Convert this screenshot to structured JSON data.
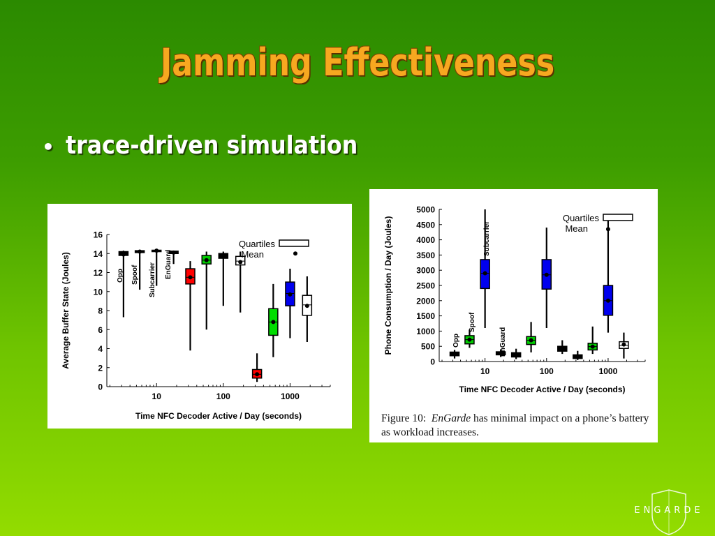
{
  "slide": {
    "title": "Jamming Effectiveness",
    "bullet": "trace-driven simulation",
    "caption_fig": "Figure 10:",
    "caption_name": "EnGarde",
    "caption_rest": "has minimal impact on a phone’s battery as workload increases.",
    "logo_text": "ENGARDE"
  },
  "chart_data": [
    {
      "type": "box",
      "title": "",
      "xlabel": "Time NFC Decoder Active / Day (seconds)",
      "ylabel": "Average Buffer State (Joules)",
      "x_scale": "log",
      "xlim": [
        1.8,
        4000
      ],
      "ylim": [
        0,
        16
      ],
      "yticks": [
        "0",
        "2",
        "4",
        "6",
        "8",
        "10",
        "12",
        "14",
        "16"
      ],
      "yticks_values": [
        0,
        2,
        4,
        6,
        8,
        10,
        12,
        14,
        16
      ],
      "xticks": [
        "10",
        "100",
        "1000"
      ],
      "xticks_values": [
        10,
        100,
        1000
      ],
      "legend": {
        "position": "top-right",
        "entries": [
          "Quartiles",
          "Mean"
        ]
      },
      "group_labels": [
        "Opp",
        "Spoof",
        "Subcarrier",
        "EnGuard"
      ],
      "boxes": [
        {
          "x": 3.2,
          "min": 7.3,
          "q1": 13.8,
          "med": 14.0,
          "q3": 14.2,
          "max": 14.3,
          "mean": 13.9,
          "color": "#000000"
        },
        {
          "x": 5.6,
          "min": 10.2,
          "q1": 14.1,
          "med": 14.2,
          "q3": 14.3,
          "max": 14.3,
          "mean": 14.2,
          "color": "#000000"
        },
        {
          "x": 10,
          "min": 10.6,
          "q1": 14.2,
          "med": 14.3,
          "q3": 14.35,
          "max": 14.4,
          "mean": 14.3,
          "color": "#000000"
        },
        {
          "x": 18,
          "min": 12.9,
          "q1": 14.0,
          "med": 14.1,
          "q3": 14.25,
          "max": 14.3,
          "mean": 14.1,
          "color": "#000000"
        },
        {
          "x": 32,
          "min": 3.8,
          "q1": 10.8,
          "med": 11.5,
          "q3": 12.4,
          "max": 13.2,
          "mean": 11.5,
          "color": "#ff0000"
        },
        {
          "x": 56,
          "min": 6.0,
          "q1": 12.9,
          "med": 13.3,
          "q3": 13.8,
          "max": 14.2,
          "mean": 13.3,
          "color": "#00cc00"
        },
        {
          "x": 100,
          "min": 8.5,
          "q1": 13.5,
          "med": 13.8,
          "q3": 14.0,
          "max": 14.2,
          "mean": 13.8,
          "color": "#000000"
        },
        {
          "x": 180,
          "min": 7.8,
          "q1": 12.8,
          "med": 13.2,
          "q3": 13.7,
          "max": 14.2,
          "mean": 13.1,
          "color": "#ffffff"
        },
        {
          "x": 320,
          "min": 0.5,
          "q1": 0.9,
          "med": 1.3,
          "q3": 1.8,
          "max": 3.5,
          "mean": 1.3,
          "color": "#ff0000"
        },
        {
          "x": 560,
          "min": 3.1,
          "q1": 5.4,
          "med": 6.8,
          "q3": 8.2,
          "max": 10.8,
          "mean": 6.8,
          "color": "#00dd00"
        },
        {
          "x": 1000,
          "min": 5.1,
          "q1": 8.5,
          "med": 9.8,
          "q3": 11.0,
          "max": 12.4,
          "mean": 9.7,
          "color": "#0000ee"
        },
        {
          "x": 1800,
          "min": 4.7,
          "q1": 7.5,
          "med": 8.6,
          "q3": 9.6,
          "max": 11.6,
          "mean": 8.5,
          "color": "#ffffff"
        }
      ],
      "outliers": [
        {
          "x": 1200,
          "y": 14.0
        }
      ]
    },
    {
      "type": "box",
      "title": "",
      "xlabel": "Time NFC Decoder Active / Day (seconds)",
      "ylabel": "Phone Consumption / Day (Joules)",
      "x_scale": "log",
      "xlim": [
        1.8,
        4000
      ],
      "ylim": [
        0,
        5000
      ],
      "yticks": [
        "0",
        "500",
        "1000",
        "1500",
        "2000",
        "2500",
        "3000",
        "3500",
        "4000",
        "4500",
        "5000"
      ],
      "yticks_values": [
        0,
        500,
        1000,
        1500,
        2000,
        2500,
        3000,
        3500,
        4000,
        4500,
        5000
      ],
      "xticks": [
        "10",
        "100",
        "1000"
      ],
      "xticks_values": [
        10,
        100,
        1000
      ],
      "legend": {
        "position": "top-right",
        "entries": [
          "Quartiles",
          "Mean"
        ]
      },
      "group_labels": [
        "Opp",
        "Spoof",
        "Subcarrier",
        "EnGuard"
      ],
      "boxes": [
        {
          "x": 3.2,
          "min": 100,
          "q1": 190,
          "med": 250,
          "q3": 310,
          "max": 380,
          "mean": 250,
          "color": "#000000"
        },
        {
          "x": 5.6,
          "min": 450,
          "q1": 580,
          "med": 720,
          "q3": 850,
          "max": 1050,
          "mean": 720,
          "color": "#00cc00"
        },
        {
          "x": 10,
          "min": 1100,
          "q1": 2400,
          "med": 2900,
          "q3": 3350,
          "max": 5000,
          "mean": 2900,
          "color": "#0000ee"
        },
        {
          "x": 18,
          "min": 150,
          "q1": 220,
          "med": 270,
          "q3": 320,
          "max": 400,
          "mean": 270,
          "color": "#000000"
        },
        {
          "x": 32,
          "min": 80,
          "q1": 150,
          "med": 210,
          "q3": 290,
          "max": 420,
          "mean": 210,
          "color": "#000000"
        },
        {
          "x": 56,
          "min": 300,
          "q1": 560,
          "med": 700,
          "q3": 820,
          "max": 1300,
          "mean": 700,
          "color": "#00cc00"
        },
        {
          "x": 100,
          "min": 1100,
          "q1": 2380,
          "med": 2850,
          "q3": 3350,
          "max": 4400,
          "mean": 2850,
          "color": "#0000ee"
        },
        {
          "x": 180,
          "min": 250,
          "q1": 340,
          "med": 420,
          "q3": 500,
          "max": 700,
          "mean": 420,
          "color": "#000000"
        },
        {
          "x": 320,
          "min": 50,
          "q1": 100,
          "med": 150,
          "q3": 220,
          "max": 350,
          "mean": 150,
          "color": "#000000"
        },
        {
          "x": 560,
          "min": 250,
          "q1": 380,
          "med": 490,
          "q3": 600,
          "max": 1150,
          "mean": 490,
          "color": "#00cc00"
        },
        {
          "x": 1000,
          "min": 950,
          "q1": 1520,
          "med": 2000,
          "q3": 2500,
          "max": 4700,
          "mean": 2000,
          "color": "#0000ee"
        },
        {
          "x": 1800,
          "min": 100,
          "q1": 430,
          "med": 530,
          "q3": 650,
          "max": 950,
          "mean": 560,
          "color": "#ffffff"
        }
      ],
      "outliers": [
        {
          "x": 1000,
          "y": 4350
        }
      ]
    }
  ]
}
